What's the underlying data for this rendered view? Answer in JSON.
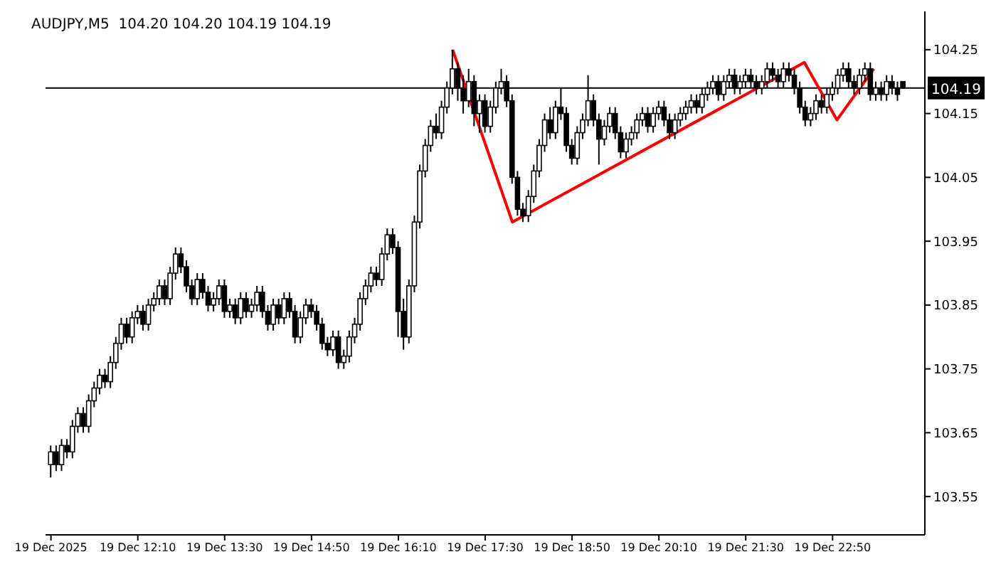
{
  "chart_data": {
    "type": "candlestick",
    "title": "AUDJPY,M5  104.20 104.20 104.19 104.19",
    "color": "#000000",
    "grid": false,
    "x": [
      "2025-12-19T10:50",
      "2025-12-19T10:55",
      "2025-12-19T11:00",
      "2025-12-19T11:05",
      "2025-12-19T11:10",
      "2025-12-19T11:15",
      "2025-12-19T11:20",
      "2025-12-19T11:25",
      "2025-12-19T11:30",
      "2025-12-19T11:35",
      "2025-12-19T11:40",
      "2025-12-19T11:45",
      "2025-12-19T11:50",
      "2025-12-19T11:55",
      "2025-12-19T12:00",
      "2025-12-19T12:05",
      "2025-12-19T12:10",
      "2025-12-19T12:15",
      "2025-12-19T12:20",
      "2025-12-19T12:25",
      "2025-12-19T12:30",
      "2025-12-19T12:35",
      "2025-12-19T12:40",
      "2025-12-19T12:45",
      "2025-12-19T12:50",
      "2025-12-19T12:55",
      "2025-12-19T13:00",
      "2025-12-19T13:05",
      "2025-12-19T13:10",
      "2025-12-19T13:15",
      "2025-12-19T13:20",
      "2025-12-19T13:25",
      "2025-12-19T13:30",
      "2025-12-19T13:35",
      "2025-12-19T13:40",
      "2025-12-19T13:45",
      "2025-12-19T13:50",
      "2025-12-19T13:55",
      "2025-12-19T14:00",
      "2025-12-19T14:05",
      "2025-12-19T14:10",
      "2025-12-19T14:15",
      "2025-12-19T14:20",
      "2025-12-19T14:25",
      "2025-12-19T14:30",
      "2025-12-19T14:35",
      "2025-12-19T14:40",
      "2025-12-19T14:45",
      "2025-12-19T14:50",
      "2025-12-19T14:55",
      "2025-12-19T15:00",
      "2025-12-19T15:05",
      "2025-12-19T15:10",
      "2025-12-19T15:15",
      "2025-12-19T15:20",
      "2025-12-19T15:25",
      "2025-12-19T15:30",
      "2025-12-19T15:35",
      "2025-12-19T15:40",
      "2025-12-19T15:45",
      "2025-12-19T15:50",
      "2025-12-19T15:55",
      "2025-12-19T16:00",
      "2025-12-19T16:05",
      "2025-12-19T16:10",
      "2025-12-19T16:15",
      "2025-12-19T16:20",
      "2025-12-19T16:25",
      "2025-12-19T16:30",
      "2025-12-19T16:35",
      "2025-12-19T16:40",
      "2025-12-19T16:45",
      "2025-12-19T16:50",
      "2025-12-19T16:55",
      "2025-12-19T17:00",
      "2025-12-19T17:05",
      "2025-12-19T17:10",
      "2025-12-19T17:15",
      "2025-12-19T17:20",
      "2025-12-19T17:25",
      "2025-12-19T17:30",
      "2025-12-19T17:35",
      "2025-12-19T17:40",
      "2025-12-19T17:45",
      "2025-12-19T17:50",
      "2025-12-19T17:55",
      "2025-12-19T18:00",
      "2025-12-19T18:05",
      "2025-12-19T18:10",
      "2025-12-19T18:15",
      "2025-12-19T18:20",
      "2025-12-19T18:25",
      "2025-12-19T18:30",
      "2025-12-19T18:35",
      "2025-12-19T18:40",
      "2025-12-19T18:45",
      "2025-12-19T18:50",
      "2025-12-19T18:55",
      "2025-12-19T19:00",
      "2025-12-19T19:05",
      "2025-12-19T19:10",
      "2025-12-19T19:15",
      "2025-12-19T19:20",
      "2025-12-19T19:25",
      "2025-12-19T19:30",
      "2025-12-19T19:35",
      "2025-12-19T19:40",
      "2025-12-19T19:45",
      "2025-12-19T19:50",
      "2025-12-19T19:55",
      "2025-12-19T20:00",
      "2025-12-19T20:05",
      "2025-12-19T20:10",
      "2025-12-19T20:15",
      "2025-12-19T20:20",
      "2025-12-19T20:25",
      "2025-12-19T20:30",
      "2025-12-19T20:35",
      "2025-12-19T20:40",
      "2025-12-19T20:45",
      "2025-12-19T20:50",
      "2025-12-19T20:55",
      "2025-12-19T21:00",
      "2025-12-19T21:05",
      "2025-12-19T21:10",
      "2025-12-19T21:15",
      "2025-12-19T21:20",
      "2025-12-19T21:25",
      "2025-12-19T21:30",
      "2025-12-19T21:35",
      "2025-12-19T21:40",
      "2025-12-19T21:45",
      "2025-12-19T21:50",
      "2025-12-19T21:55",
      "2025-12-19T22:00",
      "2025-12-19T22:05",
      "2025-12-19T22:10",
      "2025-12-19T22:15",
      "2025-12-19T22:20",
      "2025-12-19T22:25",
      "2025-12-19T22:30",
      "2025-12-19T22:35",
      "2025-12-19T22:40",
      "2025-12-19T22:45",
      "2025-12-19T22:50",
      "2025-12-19T22:55",
      "2025-12-19T23:00",
      "2025-12-19T23:05",
      "2025-12-19T23:10",
      "2025-12-19T23:15",
      "2025-12-19T23:20",
      "2025-12-19T23:25",
      "2025-12-19T23:30",
      "2025-12-19T23:35",
      "2025-12-19T23:40",
      "2025-12-19T23:45",
      "2025-12-19T23:50",
      "2025-12-19T23:55"
    ],
    "ohlc": [
      [
        103.6,
        103.63,
        103.58,
        103.62
      ],
      [
        103.62,
        103.63,
        103.59,
        103.6
      ],
      [
        103.6,
        103.64,
        103.59,
        103.63
      ],
      [
        103.63,
        103.64,
        103.61,
        103.62
      ],
      [
        103.62,
        103.67,
        103.61,
        103.66
      ],
      [
        103.66,
        103.69,
        103.65,
        103.68
      ],
      [
        103.68,
        103.69,
        103.65,
        103.66
      ],
      [
        103.66,
        103.71,
        103.65,
        103.7
      ],
      [
        103.7,
        103.73,
        103.69,
        103.72
      ],
      [
        103.72,
        103.75,
        103.71,
        103.74
      ],
      [
        103.74,
        103.75,
        103.72,
        103.73
      ],
      [
        103.73,
        103.77,
        103.72,
        103.76
      ],
      [
        103.76,
        103.8,
        103.75,
        103.79
      ],
      [
        103.79,
        103.83,
        103.78,
        103.82
      ],
      [
        103.82,
        103.83,
        103.79,
        103.8
      ],
      [
        103.8,
        103.84,
        103.79,
        103.83
      ],
      [
        103.83,
        103.85,
        103.82,
        103.84
      ],
      [
        103.84,
        103.85,
        103.81,
        103.82
      ],
      [
        103.82,
        103.86,
        103.81,
        103.85
      ],
      [
        103.85,
        103.87,
        103.84,
        103.86
      ],
      [
        103.86,
        103.89,
        103.85,
        103.88
      ],
      [
        103.88,
        103.89,
        103.85,
        103.86
      ],
      [
        103.86,
        103.91,
        103.85,
        103.9
      ],
      [
        103.9,
        103.94,
        103.89,
        103.93
      ],
      [
        103.93,
        103.94,
        103.9,
        103.91
      ],
      [
        103.91,
        103.92,
        103.87,
        103.88
      ],
      [
        103.88,
        103.89,
        103.85,
        103.86
      ],
      [
        103.86,
        103.9,
        103.85,
        103.89
      ],
      [
        103.89,
        103.9,
        103.86,
        103.87
      ],
      [
        103.87,
        103.88,
        103.84,
        103.85
      ],
      [
        103.85,
        103.87,
        103.84,
        103.86
      ],
      [
        103.86,
        103.89,
        103.85,
        103.88
      ],
      [
        103.88,
        103.89,
        103.83,
        103.84
      ],
      [
        103.84,
        103.86,
        103.83,
        103.85
      ],
      [
        103.85,
        103.86,
        103.82,
        103.83
      ],
      [
        103.83,
        103.87,
        103.82,
        103.86
      ],
      [
        103.86,
        103.87,
        103.83,
        103.84
      ],
      [
        103.84,
        103.86,
        103.83,
        103.85
      ],
      [
        103.85,
        103.88,
        103.84,
        103.87
      ],
      [
        103.87,
        103.88,
        103.83,
        103.84
      ],
      [
        103.84,
        103.85,
        103.81,
        103.82
      ],
      [
        103.82,
        103.86,
        103.81,
        103.85
      ],
      [
        103.85,
        103.86,
        103.82,
        103.83
      ],
      [
        103.83,
        103.87,
        103.82,
        103.86
      ],
      [
        103.86,
        103.87,
        103.83,
        103.84
      ],
      [
        103.84,
        103.85,
        103.79,
        103.8
      ],
      [
        103.8,
        103.84,
        103.79,
        103.83
      ],
      [
        103.83,
        103.86,
        103.82,
        103.85
      ],
      [
        103.85,
        103.86,
        103.83,
        103.84
      ],
      [
        103.84,
        103.85,
        103.81,
        103.82
      ],
      [
        103.82,
        103.83,
        103.78,
        103.79
      ],
      [
        103.79,
        103.8,
        103.77,
        103.78
      ],
      [
        103.78,
        103.81,
        103.77,
        103.8
      ],
      [
        103.8,
        103.81,
        103.75,
        103.76
      ],
      [
        103.76,
        103.78,
        103.75,
        103.77
      ],
      [
        103.77,
        103.81,
        103.76,
        103.8
      ],
      [
        103.8,
        103.83,
        103.79,
        103.82
      ],
      [
        103.82,
        103.87,
        103.81,
        103.86
      ],
      [
        103.86,
        103.89,
        103.85,
        103.88
      ],
      [
        103.88,
        103.91,
        103.87,
        103.9
      ],
      [
        103.9,
        103.91,
        103.88,
        103.89
      ],
      [
        103.89,
        103.94,
        103.88,
        103.93
      ],
      [
        103.93,
        103.97,
        103.92,
        103.96
      ],
      [
        103.96,
        103.97,
        103.93,
        103.94
      ],
      [
        103.94,
        103.95,
        103.8,
        103.84
      ],
      [
        103.84,
        103.86,
        103.78,
        103.8
      ],
      [
        103.8,
        103.89,
        103.79,
        103.88
      ],
      [
        103.88,
        103.99,
        103.87,
        103.98
      ],
      [
        103.98,
        104.07,
        103.97,
        104.06
      ],
      [
        104.06,
        104.11,
        104.05,
        104.1
      ],
      [
        104.1,
        104.14,
        104.09,
        104.13
      ],
      [
        104.13,
        104.15,
        104.11,
        104.12
      ],
      [
        104.12,
        104.17,
        104.11,
        104.16
      ],
      [
        104.16,
        104.2,
        104.15,
        104.19
      ],
      [
        104.19,
        104.25,
        104.18,
        104.22
      ],
      [
        104.22,
        104.23,
        104.17,
        104.19
      ],
      [
        104.19,
        104.21,
        104.15,
        104.17
      ],
      [
        104.17,
        104.22,
        104.16,
        104.2
      ],
      [
        104.2,
        104.21,
        104.13,
        104.15
      ],
      [
        104.15,
        104.18,
        104.12,
        104.17
      ],
      [
        104.17,
        104.18,
        104.12,
        104.13
      ],
      [
        104.13,
        104.17,
        104.12,
        104.16
      ],
      [
        104.16,
        104.2,
        104.15,
        104.19
      ],
      [
        104.19,
        104.22,
        104.18,
        104.2
      ],
      [
        104.2,
        104.21,
        104.16,
        104.17
      ],
      [
        104.17,
        104.18,
        104.04,
        104.05
      ],
      [
        104.05,
        104.06,
        103.99,
        104.0
      ],
      [
        104.0,
        104.01,
        103.98,
        103.99
      ],
      [
        103.99,
        104.03,
        103.98,
        104.02
      ],
      [
        104.02,
        104.07,
        104.01,
        104.06
      ],
      [
        104.06,
        104.11,
        104.05,
        104.1
      ],
      [
        104.1,
        104.15,
        104.09,
        104.14
      ],
      [
        104.14,
        104.16,
        104.11,
        104.12
      ],
      [
        104.12,
        104.17,
        104.11,
        104.16
      ],
      [
        104.16,
        104.19,
        104.14,
        104.15
      ],
      [
        104.15,
        104.16,
        104.09,
        104.1
      ],
      [
        104.1,
        104.11,
        104.07,
        104.08
      ],
      [
        104.08,
        104.13,
        104.07,
        104.12
      ],
      [
        104.12,
        104.15,
        104.11,
        104.14
      ],
      [
        104.14,
        104.21,
        104.13,
        104.17
      ],
      [
        104.17,
        104.18,
        104.13,
        104.14
      ],
      [
        104.14,
        104.15,
        104.07,
        104.11
      ],
      [
        104.11,
        104.14,
        104.1,
        104.13
      ],
      [
        104.13,
        104.16,
        104.12,
        104.15
      ],
      [
        104.15,
        104.16,
        104.11,
        104.12
      ],
      [
        104.12,
        104.13,
        104.08,
        104.09
      ],
      [
        104.09,
        104.12,
        104.08,
        104.11
      ],
      [
        104.11,
        104.13,
        104.1,
        104.12
      ],
      [
        104.12,
        104.15,
        104.11,
        104.14
      ],
      [
        104.14,
        104.16,
        104.13,
        104.15
      ],
      [
        104.15,
        104.16,
        104.12,
        104.13
      ],
      [
        104.13,
        104.16,
        104.12,
        104.15
      ],
      [
        104.15,
        104.17,
        104.14,
        104.16
      ],
      [
        104.16,
        104.17,
        104.13,
        104.14
      ],
      [
        104.14,
        104.15,
        104.11,
        104.12
      ],
      [
        104.12,
        104.15,
        104.11,
        104.14
      ],
      [
        104.14,
        104.16,
        104.13,
        104.15
      ],
      [
        104.15,
        104.17,
        104.14,
        104.16
      ],
      [
        104.16,
        104.18,
        104.15,
        104.17
      ],
      [
        104.17,
        104.18,
        104.15,
        104.16
      ],
      [
        104.16,
        104.19,
        104.15,
        104.18
      ],
      [
        104.18,
        104.2,
        104.17,
        104.19
      ],
      [
        104.19,
        104.21,
        104.18,
        104.2
      ],
      [
        104.2,
        104.21,
        104.17,
        104.18
      ],
      [
        104.18,
        104.21,
        104.17,
        104.2
      ],
      [
        104.2,
        104.22,
        104.19,
        104.21
      ],
      [
        104.21,
        104.22,
        104.18,
        104.19
      ],
      [
        104.19,
        104.21,
        104.18,
        104.2
      ],
      [
        104.2,
        104.22,
        104.19,
        104.21
      ],
      [
        104.21,
        104.22,
        104.19,
        104.2
      ],
      [
        104.2,
        104.21,
        104.18,
        104.19
      ],
      [
        104.19,
        104.21,
        104.18,
        104.2
      ],
      [
        104.2,
        104.23,
        104.19,
        104.22
      ],
      [
        104.22,
        104.23,
        104.2,
        104.21
      ],
      [
        104.21,
        104.22,
        104.19,
        104.2
      ],
      [
        104.2,
        104.23,
        104.19,
        104.22
      ],
      [
        104.22,
        104.23,
        104.2,
        104.21
      ],
      [
        104.21,
        104.22,
        104.18,
        104.19
      ],
      [
        104.19,
        104.2,
        104.15,
        104.16
      ],
      [
        104.16,
        104.17,
        104.13,
        104.14
      ],
      [
        104.14,
        104.16,
        104.13,
        104.15
      ],
      [
        104.15,
        104.18,
        104.14,
        104.17
      ],
      [
        104.17,
        104.18,
        104.15,
        104.16
      ],
      [
        104.16,
        104.19,
        104.15,
        104.18
      ],
      [
        104.18,
        104.2,
        104.17,
        104.19
      ],
      [
        104.19,
        104.22,
        104.18,
        104.21
      ],
      [
        104.21,
        104.23,
        104.2,
        104.22
      ],
      [
        104.22,
        104.23,
        104.19,
        104.2
      ],
      [
        104.2,
        104.21,
        104.18,
        104.19
      ],
      [
        104.19,
        104.22,
        104.18,
        104.21
      ],
      [
        104.21,
        104.23,
        104.2,
        104.22
      ],
      [
        104.22,
        104.23,
        104.17,
        104.18
      ],
      [
        104.18,
        104.2,
        104.17,
        104.19
      ],
      [
        104.19,
        104.2,
        104.17,
        104.18
      ],
      [
        104.18,
        104.21,
        104.17,
        104.2
      ],
      [
        104.2,
        104.21,
        104.18,
        104.19
      ],
      [
        104.19,
        104.2,
        104.17,
        104.18
      ],
      [
        104.2,
        104.2,
        104.19,
        104.19
      ]
    ],
    "series": [
      {
        "type": "line",
        "color": "#ff0000",
        "x": [
          "2025-12-19T17:00",
          "2025-12-19T17:55",
          "2025-12-19T22:24",
          "2025-12-19T22:54",
          "2025-12-19T23:28"
        ],
        "values": [
          104.25,
          103.98,
          104.23,
          104.14,
          104.22
        ]
      }
    ],
    "xlim": [
      "2025-12-19T10:45",
      "2025-12-20T00:15"
    ],
    "xticks": [
      {
        "value": "2025-12-19T10:50",
        "label": "19 Dec 2025"
      },
      {
        "value": "2025-12-19T12:10",
        "label": "19 Dec 12:10"
      },
      {
        "value": "2025-12-19T13:30",
        "label": "19 Dec 13:30"
      },
      {
        "value": "2025-12-19T14:50",
        "label": "19 Dec 14:50"
      },
      {
        "value": "2025-12-19T16:10",
        "label": "19 Dec 16:10"
      },
      {
        "value": "2025-12-19T17:30",
        "label": "19 Dec 17:30"
      },
      {
        "value": "2025-12-19T18:50",
        "label": "19 Dec 18:50"
      },
      {
        "value": "2025-12-19T20:10",
        "label": "19 Dec 20:10"
      },
      {
        "value": "2025-12-19T21:30",
        "label": "19 Dec 21:30"
      },
      {
        "value": "2025-12-19T22:50",
        "label": "19 Dec 22:50"
      }
    ],
    "ylim": [
      103.49,
      104.31
    ],
    "yticks": [
      103.55,
      103.65,
      103.75,
      103.85,
      103.95,
      104.05,
      104.15,
      104.25
    ],
    "ref_lines": [
      {
        "axis": "y",
        "value": 104.19,
        "label": "104.19",
        "color": "#000000"
      }
    ]
  }
}
